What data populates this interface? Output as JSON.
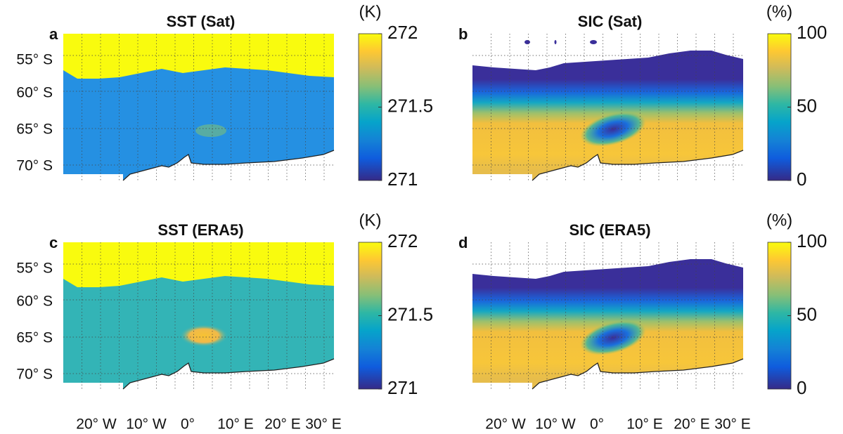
{
  "panels": [
    {
      "label": "a",
      "title": "SST (Sat)",
      "colorbar": {
        "unit": "(K)",
        "lim": [
          271,
          272
        ],
        "ticks": [
          271,
          271.5,
          272
        ]
      },
      "lat_labels": [
        "55° S",
        "60° S",
        "65° S",
        "70° S"
      ]
    },
    {
      "label": "b",
      "title": "SIC (Sat)",
      "colorbar": {
        "unit": "(%)",
        "lim": [
          0,
          100
        ],
        "ticks": [
          0,
          50,
          100
        ]
      }
    },
    {
      "label": "c",
      "title": "SST (ERA5)",
      "colorbar": {
        "unit": "(K)",
        "lim": [
          271,
          272
        ],
        "ticks": [
          271,
          271.5,
          272
        ]
      },
      "lat_labels": [
        "55° S",
        "60° S",
        "65° S",
        "70° S"
      ],
      "lon_labels": [
        "20° W",
        "10° W",
        "0°",
        "10° E",
        "20° E",
        "30° E"
      ]
    },
    {
      "label": "d",
      "title": "SIC (ERA5)",
      "colorbar": {
        "unit": "(%)",
        "lim": [
          0,
          100
        ],
        "ticks": [
          0,
          50,
          100
        ]
      },
      "lon_labels": [
        "20° W",
        "10° W",
        "0°",
        "10° E",
        "20° E",
        "30° E"
      ]
    }
  ]
}
